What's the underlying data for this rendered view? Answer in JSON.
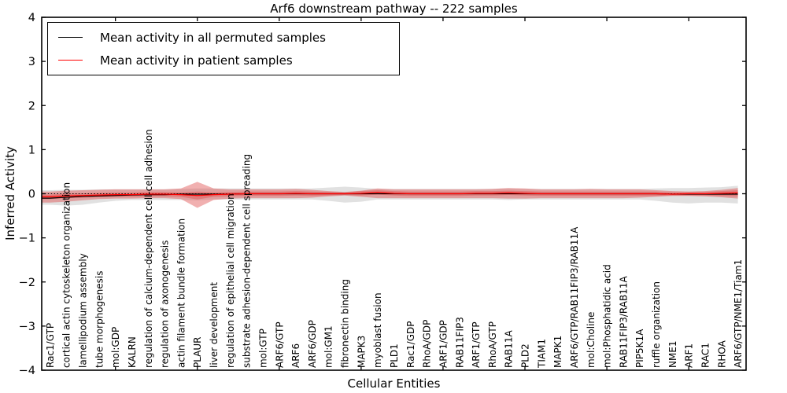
{
  "title": "Arf6 downstream pathway -- 222 samples",
  "legend": {
    "entries": [
      {
        "label": "Mean activity in all permuted samples",
        "color": "#000000"
      },
      {
        "label": "Mean activity in patient samples",
        "color": "#ff0000"
      }
    ]
  },
  "colors": {
    "permuted_line": "#000000",
    "patient_line": "#ff0000",
    "patient_band_fill": "#e05050",
    "permuted_band_fill": "#c8c8c8",
    "frame": "#000000",
    "background": "#ffffff"
  },
  "chart_data": {
    "type": "line",
    "title": "Arf6 downstream pathway -- 222 samples",
    "xlabel": "Cellular Entities",
    "ylabel": "Inferred Activity",
    "ylim": [
      -4,
      4
    ],
    "yticks": {
      "values": [
        4,
        3,
        2,
        1,
        0,
        -1,
        -2,
        -3,
        -4
      ],
      "labels": [
        "4",
        "3",
        "2",
        "1",
        "0",
        "−1",
        "−2",
        "−3",
        "−4"
      ]
    },
    "grid": false,
    "legend_position": "upper left",
    "reference_line": {
      "y": 0,
      "style": "dotted",
      "color": "#000000"
    },
    "categories": [
      "Rac1/GTP",
      "cortical actin cytoskeleton organization",
      "lamellipodium assembly",
      "tube morphogenesis",
      "mol:GDP",
      "KALRN",
      "regulation of calcium-dependent cell-cell adhesion",
      "regulation of axonogenesis",
      "actin filament bundle formation",
      "PLAUR",
      "liver development",
      "regulation of epithelial cell migration",
      "substrate adhesion-dependent cell spreading",
      "mol:GTP",
      "ARF6/GTP",
      "ARF6",
      "ARF6/GDP",
      "mol:GM1",
      "fibronectin binding",
      "MAPK3",
      "myoblast fusion",
      "PLD1",
      "Rac1/GDP",
      "RhoA/GDP",
      "ARF1/GDP",
      "RAB11FIP3",
      "ARF1/GTP",
      "RhoA/GTP",
      "RAB11A",
      "PLD2",
      "TIAM1",
      "MAPK1",
      "ARF6/GTP/RAB11FIP3/RAB11A",
      "mol:Choline",
      "mol:Phosphatidic acid",
      "RAB11FIP3/RAB11A",
      "PIP5K1A",
      "ruffle organization",
      "NME1",
      "ARF1",
      "RAC1",
      "RHOA",
      "ARF6/GTP/NME1/Tiam1"
    ],
    "series": [
      {
        "name": "Mean activity in all permuted samples",
        "color": "#000000",
        "style": "solid",
        "values": [
          -0.1,
          -0.08,
          -0.06,
          -0.05,
          -0.04,
          -0.03,
          -0.02,
          -0.02,
          -0.01,
          -0.01,
          -0.01,
          -0.01,
          0,
          0,
          0,
          0,
          0,
          0,
          0,
          0,
          0,
          0,
          0,
          0,
          0,
          0,
          0,
          0,
          0,
          0,
          0,
          0,
          0,
          0,
          0,
          0,
          0,
          0,
          -0.01,
          -0.01,
          -0.01,
          -0.01,
          -0.01
        ]
      },
      {
        "name": "Mean activity in patient samples",
        "color": "#ff0000",
        "style": "solid",
        "values": [
          -0.07,
          -0.05,
          -0.04,
          -0.03,
          -0.02,
          -0.02,
          -0.01,
          -0.01,
          -0.02,
          -0.04,
          -0.02,
          -0.01,
          0,
          0,
          0,
          0.01,
          0,
          0,
          0,
          0.01,
          0.03,
          0.01,
          0,
          0,
          0,
          0,
          0.01,
          0.01,
          0.02,
          0.01,
          0,
          0,
          0,
          0,
          0,
          0,
          0,
          0,
          -0.01,
          0,
          0,
          0.01,
          0.02
        ]
      }
    ],
    "bands": [
      {
        "name": "permuted-samples-range",
        "color": "#c8c8c8",
        "opacity": 0.55,
        "upper": [
          0.08,
          0.09,
          0.09,
          0.1,
          0.1,
          0.1,
          0.1,
          0.1,
          0.11,
          0.12,
          0.12,
          0.12,
          0.12,
          0.12,
          0.12,
          0.12,
          0.12,
          0.14,
          0.16,
          0.14,
          0.11,
          0.11,
          0.11,
          0.11,
          0.11,
          0.11,
          0.11,
          0.11,
          0.12,
          0.11,
          0.11,
          0.11,
          0.11,
          0.11,
          0.11,
          0.11,
          0.11,
          0.12,
          0.13,
          0.13,
          0.14,
          0.15,
          0.18
        ],
        "lower": [
          -0.25,
          -0.27,
          -0.25,
          -0.2,
          -0.16,
          -0.14,
          -0.14,
          -0.14,
          -0.14,
          -0.15,
          -0.13,
          -0.13,
          -0.13,
          -0.13,
          -0.13,
          -0.13,
          -0.13,
          -0.16,
          -0.2,
          -0.18,
          -0.13,
          -0.13,
          -0.13,
          -0.13,
          -0.13,
          -0.13,
          -0.13,
          -0.13,
          -0.14,
          -0.13,
          -0.13,
          -0.13,
          -0.13,
          -0.13,
          -0.13,
          -0.13,
          -0.13,
          -0.16,
          -0.2,
          -0.22,
          -0.2,
          -0.2,
          -0.22
        ]
      },
      {
        "name": "patient-samples-range-outer",
        "color": "#e05050",
        "opacity": 0.45,
        "upper": [
          0.05,
          0.07,
          0.08,
          0.09,
          0.1,
          0.1,
          0.1,
          0.1,
          0.12,
          0.27,
          0.12,
          0.1,
          0.1,
          0.1,
          0.1,
          0.11,
          0.09,
          0.06,
          0.04,
          0.07,
          0.12,
          0.1,
          0.1,
          0.1,
          0.1,
          0.1,
          0.1,
          0.11,
          0.13,
          0.12,
          0.1,
          0.1,
          0.1,
          0.11,
          0.1,
          0.1,
          0.1,
          0.08,
          0.06,
          0.05,
          0.06,
          0.09,
          0.13
        ],
        "lower": [
          -0.2,
          -0.18,
          -0.15,
          -0.12,
          -0.11,
          -0.11,
          -0.1,
          -0.1,
          -0.12,
          -0.32,
          -0.14,
          -0.11,
          -0.1,
          -0.1,
          -0.1,
          -0.1,
          -0.09,
          -0.06,
          -0.04,
          -0.07,
          -0.1,
          -0.1,
          -0.1,
          -0.1,
          -0.1,
          -0.1,
          -0.1,
          -0.1,
          -0.11,
          -0.11,
          -0.1,
          -0.1,
          -0.1,
          -0.1,
          -0.1,
          -0.1,
          -0.09,
          -0.07,
          -0.05,
          -0.05,
          -0.06,
          -0.08,
          -0.11
        ]
      },
      {
        "name": "patient-samples-range-inner",
        "color": "#e05050",
        "opacity": 0.45,
        "upper": [
          -0.02,
          0.0,
          0.01,
          0.02,
          0.03,
          0.03,
          0.04,
          0.04,
          0.03,
          0.05,
          0.03,
          0.04,
          0.05,
          0.05,
          0.05,
          0.06,
          0.05,
          0.04,
          0.03,
          0.06,
          0.08,
          0.06,
          0.05,
          0.05,
          0.05,
          0.05,
          0.06,
          0.06,
          0.07,
          0.06,
          0.05,
          0.05,
          0.05,
          0.05,
          0.05,
          0.05,
          0.05,
          0.05,
          0.03,
          0.04,
          0.04,
          0.06,
          0.08
        ],
        "lower": [
          -0.12,
          -0.1,
          -0.09,
          -0.08,
          -0.07,
          -0.07,
          -0.06,
          -0.06,
          -0.07,
          -0.13,
          -0.07,
          -0.06,
          -0.05,
          -0.05,
          -0.05,
          -0.04,
          -0.05,
          -0.04,
          -0.03,
          -0.04,
          -0.02,
          -0.04,
          -0.05,
          -0.05,
          -0.05,
          -0.05,
          -0.04,
          -0.04,
          -0.03,
          -0.04,
          -0.05,
          -0.05,
          -0.05,
          -0.05,
          -0.05,
          -0.05,
          -0.05,
          -0.05,
          -0.04,
          -0.04,
          -0.04,
          -0.05,
          -0.06
        ]
      }
    ]
  }
}
